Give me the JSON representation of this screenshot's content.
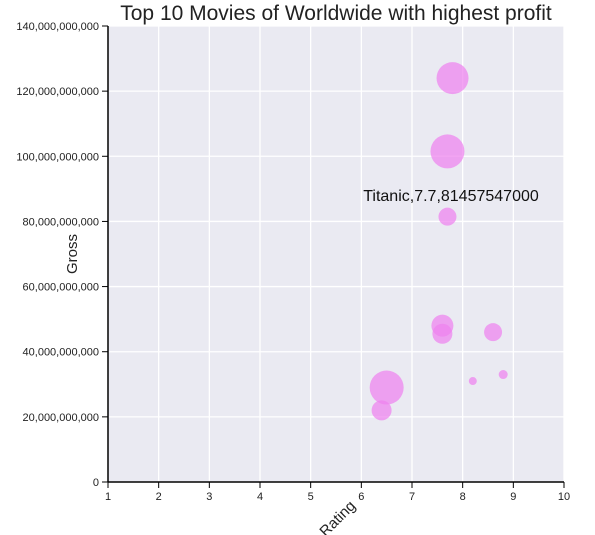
{
  "chart_data": {
    "type": "scatter",
    "title": "Top 10 Movies of Worldwide with highest profit",
    "xlabel": "Rating",
    "ylabel": "Gross",
    "xlim": [
      1,
      10
    ],
    "ylim": [
      0,
      140000000000
    ],
    "x_ticks": [
      1,
      2,
      3,
      4,
      5,
      6,
      7,
      8,
      9,
      10
    ],
    "y_ticks": [
      0,
      20000000000,
      40000000000,
      60000000000,
      80000000000,
      100000000000,
      120000000000,
      140000000000
    ],
    "x_tick_labels": [
      "1",
      "2",
      "3",
      "4",
      "5",
      "6",
      "7",
      "8",
      "9",
      "10"
    ],
    "y_tick_labels": [
      "0",
      "20,000,000,000",
      "40,000,000,000",
      "60,000,000,000",
      "80,000,000,000",
      "100,000,000,000",
      "120,000,000,000",
      "140,000,000,000"
    ],
    "grid": true,
    "background_color": "#eaeaf2",
    "bubble_color": "#ee82ee",
    "annotation": "Titanic,7.7,81457547000",
    "points": [
      {
        "x": 7.8,
        "y": 124000000000,
        "size": 16
      },
      {
        "x": 7.7,
        "y": 101500000000,
        "size": 17
      },
      {
        "x": 7.7,
        "y": 81457547000,
        "size": 9
      },
      {
        "x": 7.6,
        "y": 48000000000,
        "size": 11
      },
      {
        "x": 7.6,
        "y": 45500000000,
        "size": 10
      },
      {
        "x": 8.6,
        "y": 46000000000,
        "size": 9
      },
      {
        "x": 6.5,
        "y": 29000000000,
        "size": 17
      },
      {
        "x": 6.4,
        "y": 22000000000,
        "size": 10
      },
      {
        "x": 8.8,
        "y": 33000000000,
        "size": 4.5
      },
      {
        "x": 8.2,
        "y": 31000000000,
        "size": 4
      }
    ]
  }
}
